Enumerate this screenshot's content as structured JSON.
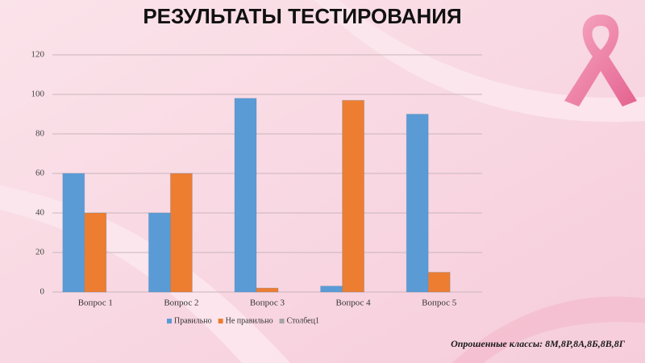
{
  "chart_data": {
    "type": "bar",
    "title": "РЕЗУЛЬТАТЫ ТЕСТИРОВАНИЯ",
    "footnote": "Опрошенные классы: 8М,8Р,8А,8Б,8В,8Г",
    "categories": [
      "Вопрос 1",
      "Вопрос 2",
      "Вопрос 3",
      "Вопрос 4",
      "Вопрос 5"
    ],
    "series": [
      {
        "name": "Правильно",
        "color": "#5b9bd5",
        "values": [
          60,
          40,
          98,
          3,
          90
        ]
      },
      {
        "name": "Не правильно",
        "color": "#ed7d31",
        "values": [
          40,
          60,
          2,
          97,
          10
        ]
      },
      {
        "name": "Столбец1",
        "color": "#a5a5a5",
        "values": [
          null,
          null,
          null,
          null,
          null
        ]
      }
    ],
    "ylim": [
      0,
      120
    ],
    "yticks": [
      0,
      20,
      40,
      60,
      80,
      100,
      120
    ],
    "grid": true,
    "legend": "bottom"
  }
}
